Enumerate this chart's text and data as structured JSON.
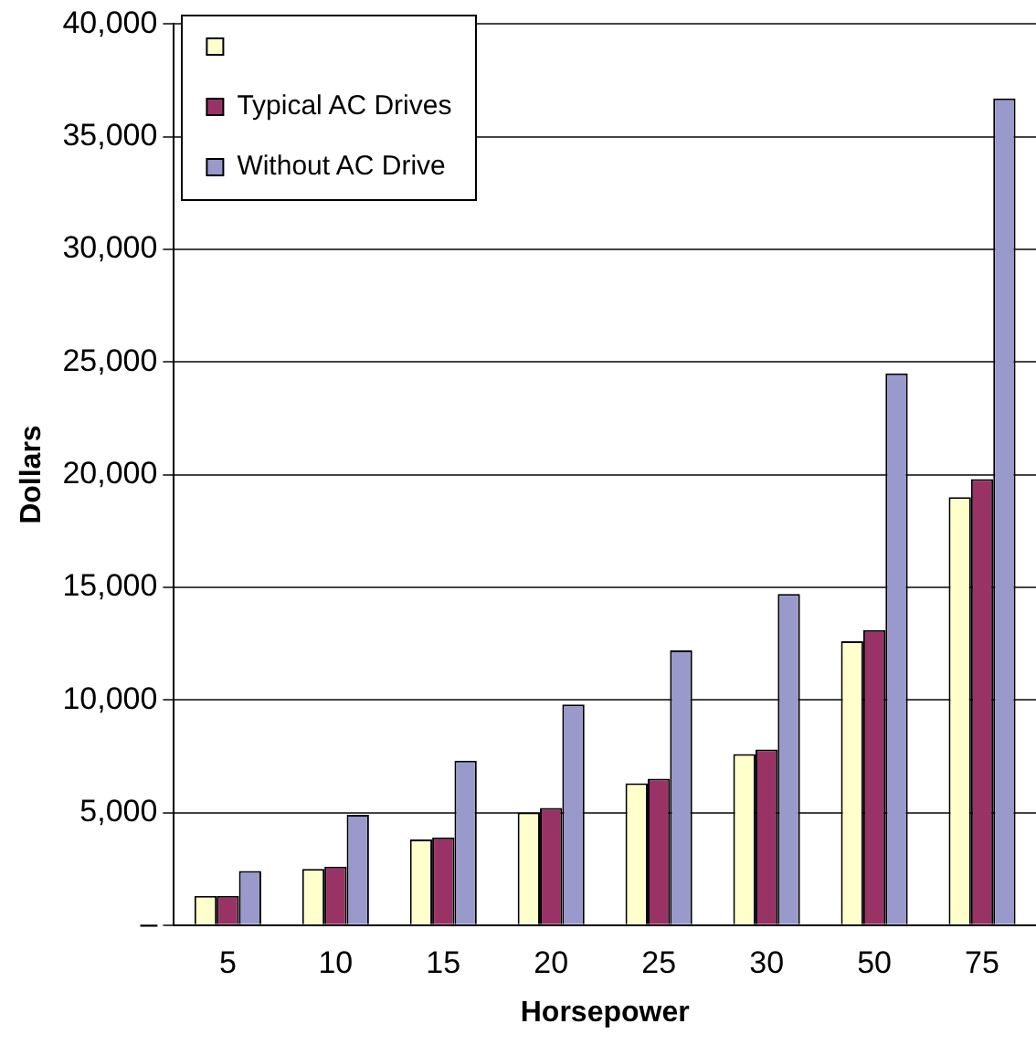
{
  "chart_data": {
    "type": "bar",
    "xlabel": "Horsepower",
    "ylabel": "Dollars",
    "categories": [
      "5",
      "10",
      "15",
      "20",
      "25",
      "30",
      "50",
      "75"
    ],
    "series": [
      {
        "color": "#ffffcc",
        "values": [
          1300,
          2500,
          3800,
          5000,
          6300,
          7600,
          12600,
          19000
        ]
      },
      {
        "name": "Typical AC Drives",
        "color": "#993366",
        "values": [
          1300,
          2600,
          3900,
          5200,
          6500,
          7800,
          13100,
          19800
        ]
      },
      {
        "name": "Without AC Drive",
        "color": "#9999cc",
        "values": [
          2400,
          4900,
          7300,
          9800,
          12200,
          14700,
          24500,
          36700
        ]
      }
    ],
    "ylim": [
      0,
      40000
    ],
    "yticks": [
      {
        "value": 0,
        "label": "–"
      },
      {
        "value": 5000,
        "label": "5,000"
      },
      {
        "value": 10000,
        "label": "10,000"
      },
      {
        "value": 15000,
        "label": "15,000"
      },
      {
        "value": 20000,
        "label": "20,000"
      },
      {
        "value": 25000,
        "label": "25,000"
      },
      {
        "value": 30000,
        "label": "30,000"
      },
      {
        "value": 35000,
        "label": "35,000"
      },
      {
        "value": 40000,
        "label": "40,000"
      }
    ],
    "grid": "y",
    "legend": "top left"
  }
}
